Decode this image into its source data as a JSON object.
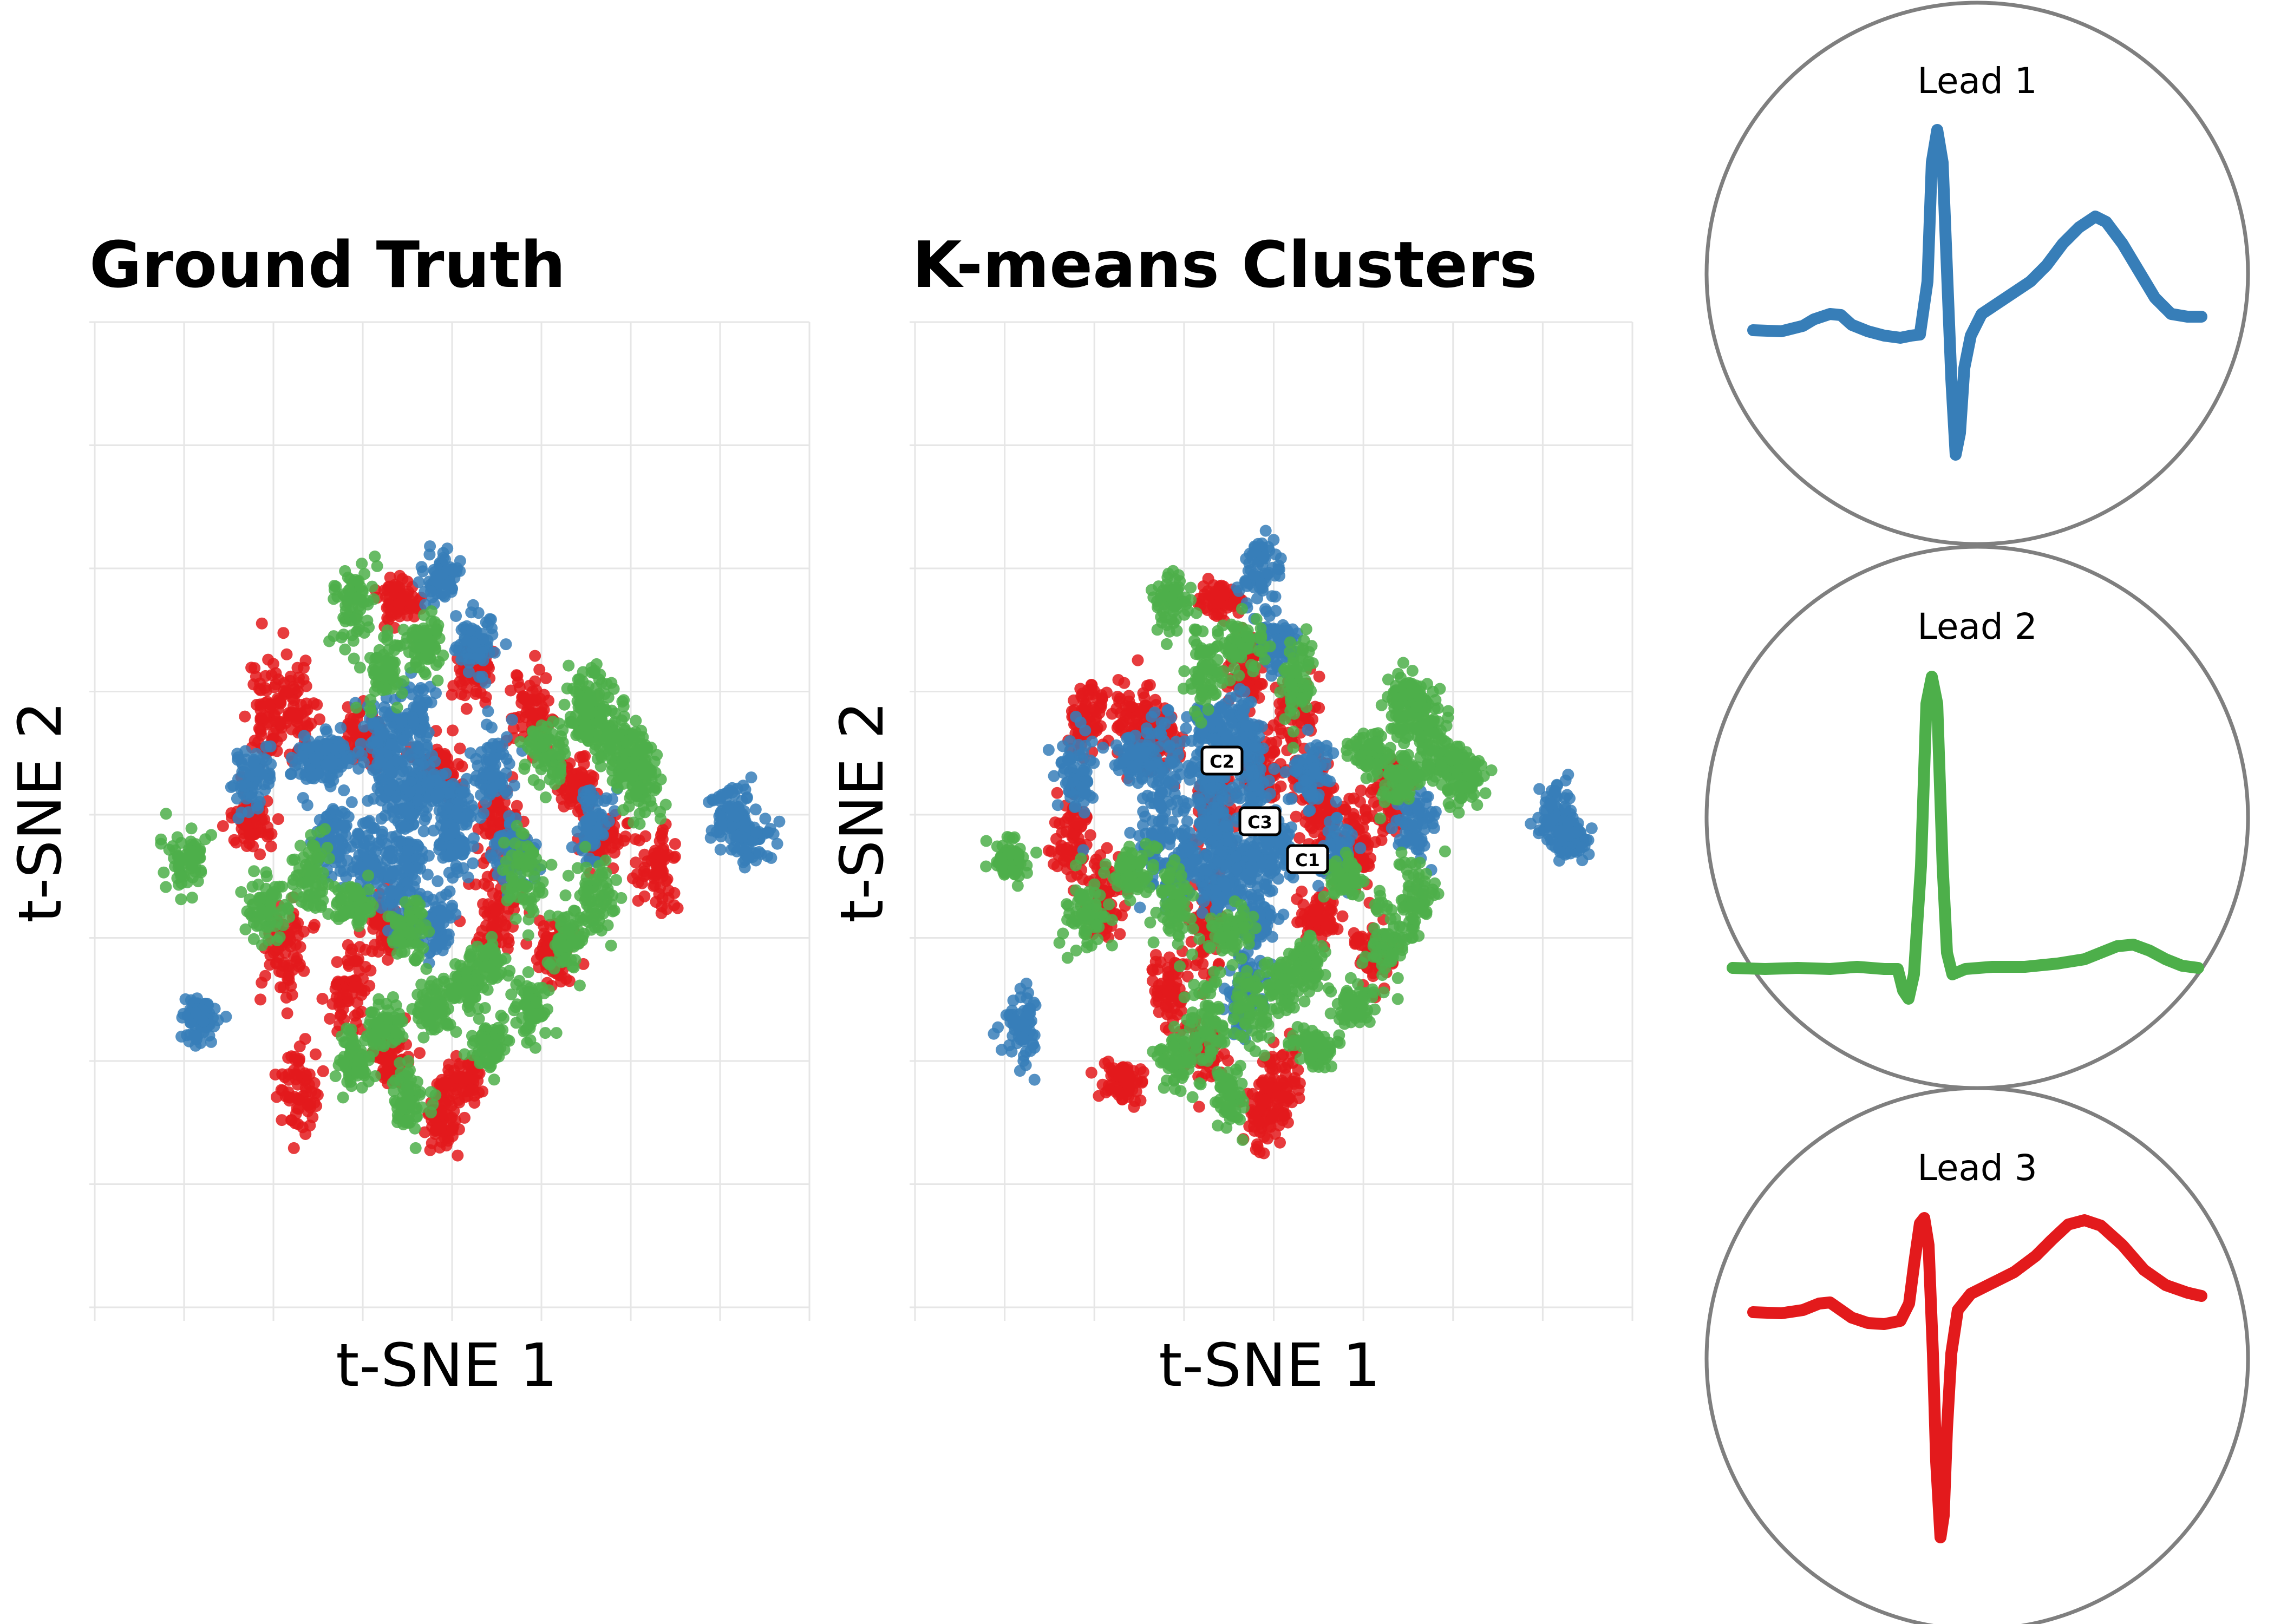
{
  "colors": {
    "red": "#e31a1c",
    "blue": "#377eb8",
    "green": "#4daf4a",
    "grid": "#e6e6e6",
    "circle": "#7f7f7f"
  },
  "chart_data": [
    {
      "type": "scatter",
      "title": "Ground Truth",
      "xlabel": "t-SNE 1",
      "ylabel": "t-SNE 2",
      "grid": true,
      "series": [
        {
          "color": "red",
          "clusters": [
            [
              22,
              64
            ],
            [
              -48,
              35
            ],
            [
              -95,
              -65
            ],
            [
              -116,
              -5
            ],
            [
              -90,
              47
            ],
            [
              -32,
              -114
            ],
            [
              -86,
              -128
            ],
            [
              -106,
              45
            ],
            [
              -55,
              -79
            ],
            [
              -32,
              -53
            ],
            [
              0,
              20
            ],
            [
              13,
              -124
            ],
            [
              38,
              -4
            ],
            [
              57,
              47
            ],
            [
              85,
              14
            ],
            [
              35,
              -49
            ],
            [
              69,
              -64
            ],
            [
              100,
              -12
            ],
            [
              135,
              -26
            ],
            [
              -25,
              98
            ],
            [
              2,
              -140
            ]
          ]
        },
        {
          "color": "blue",
          "clusters": [
            [
              0,
              110
            ],
            [
              22,
              78
            ],
            [
              -32,
              38
            ],
            [
              -65,
              24
            ],
            [
              -20,
              -20
            ],
            [
              10,
              0
            ],
            [
              -45,
              -22
            ],
            [
              -65,
              -14
            ],
            [
              -25,
              -37
            ],
            [
              -2,
              -52
            ],
            [
              31,
              19
            ],
            [
              47,
              -19
            ],
            [
              95,
              -5
            ],
            [
              -115,
              18
            ],
            [
              -147,
              -96
            ],
            [
              -78,
              24
            ],
            [
              -33,
              20
            ],
            [
              -13,
              40
            ],
            [
              -5,
              12
            ],
            [
              10,
              -15
            ],
            [
              -20,
              5
            ],
            [
              180,
              -3
            ],
            [
              190,
              -12
            ]
          ]
        },
        {
          "color": "green",
          "clusters": [
            [
              -54,
              96
            ],
            [
              -10,
              78
            ],
            [
              -35,
              66
            ],
            [
              -155,
              -22
            ],
            [
              -107,
              -44
            ],
            [
              -80,
              -28
            ],
            [
              -54,
              -43
            ],
            [
              -19,
              -55
            ],
            [
              52,
              -30
            ],
            [
              66,
              27
            ],
            [
              92,
              42
            ],
            [
              106,
              34
            ],
            [
              124,
              14
            ],
            [
              15,
              -80
            ],
            [
              -5,
              -90
            ],
            [
              -35,
              -98
            ],
            [
              -52,
              -114
            ],
            [
              31,
              -108
            ],
            [
              28,
              -70
            ],
            [
              57,
              -90
            ],
            [
              78,
              -60
            ],
            [
              96,
              -40
            ],
            [
              -20,
              -132
            ],
            [
              92,
              54
            ],
            [
              120,
              22
            ]
          ]
        }
      ]
    },
    {
      "type": "scatter",
      "title": "K-means Clusters",
      "xlabel": "t-SNE 1",
      "ylabel": "t-SNE 2",
      "grid": true,
      "cluster_labels": [
        "C2",
        "C3",
        "C1"
      ],
      "series": [
        {
          "color": "red",
          "clusters": [
            [
              -10,
              64
            ],
            [
              -62,
              35
            ],
            [
              -96,
              -40
            ],
            [
              -116,
              -10
            ],
            [
              -80,
              40
            ],
            [
              -35,
              -110
            ],
            [
              -86,
              -125
            ],
            [
              -106,
              45
            ],
            [
              -55,
              -80
            ],
            [
              -32,
              -55
            ],
            [
              0,
              20
            ],
            [
              13,
              -124
            ],
            [
              38,
              -4
            ],
            [
              20,
              47
            ],
            [
              30,
              14
            ],
            [
              35,
              -49
            ],
            [
              69,
              -64
            ],
            [
              60,
              -12
            ],
            [
              -28,
              0
            ],
            [
              -25,
              98
            ],
            [
              2,
              -140
            ],
            [
              80,
              10
            ]
          ]
        },
        {
          "color": "blue",
          "clusters": [
            [
              0,
              110
            ],
            [
              10,
              78
            ],
            [
              -32,
              40
            ],
            [
              -60,
              24
            ],
            [
              -20,
              -20
            ],
            [
              -5,
              10
            ],
            [
              -45,
              -22
            ],
            [
              -65,
              -14
            ],
            [
              -25,
              -37
            ],
            [
              -2,
              -52
            ],
            [
              31,
              19
            ],
            [
              47,
              -19
            ],
            [
              95,
              -5
            ],
            [
              -115,
              18
            ],
            [
              -147,
              -96
            ],
            [
              -78,
              24
            ],
            [
              -33,
              20
            ],
            [
              -13,
              40
            ],
            [
              -5,
              -30
            ],
            [
              10,
              -15
            ],
            [
              -30,
              -5
            ],
            [
              180,
              -3
            ],
            [
              190,
              -12
            ],
            [
              -10,
              -82
            ]
          ]
        },
        {
          "color": "green",
          "clusters": [
            [
              22,
              64
            ],
            [
              -54,
              96
            ],
            [
              -10,
              78
            ],
            [
              -35,
              66
            ],
            [
              -155,
              -22
            ],
            [
              -107,
              -44
            ],
            [
              -80,
              -28
            ],
            [
              -54,
              -43
            ],
            [
              -19,
              -55
            ],
            [
              52,
              -30
            ],
            [
              66,
              27
            ],
            [
              92,
              42
            ],
            [
              106,
              34
            ],
            [
              124,
              14
            ],
            [
              15,
              -80
            ],
            [
              -5,
              -90
            ],
            [
              -35,
              -98
            ],
            [
              -52,
              -114
            ],
            [
              31,
              -108
            ],
            [
              28,
              -70
            ],
            [
              57,
              -90
            ],
            [
              78,
              -60
            ],
            [
              96,
              -40
            ],
            [
              -20,
              -132
            ],
            [
              92,
              54
            ],
            [
              120,
              22
            ],
            [
              85,
              14
            ]
          ]
        }
      ]
    }
  ],
  "leads": [
    {
      "label": "Lead 1",
      "color": "blue",
      "shape": "biphasic-qrs"
    },
    {
      "label": "Lead 2",
      "color": "green",
      "shape": "tall-r-wave"
    },
    {
      "label": "Lead 3",
      "color": "red",
      "shape": "deep-s-wave"
    }
  ]
}
